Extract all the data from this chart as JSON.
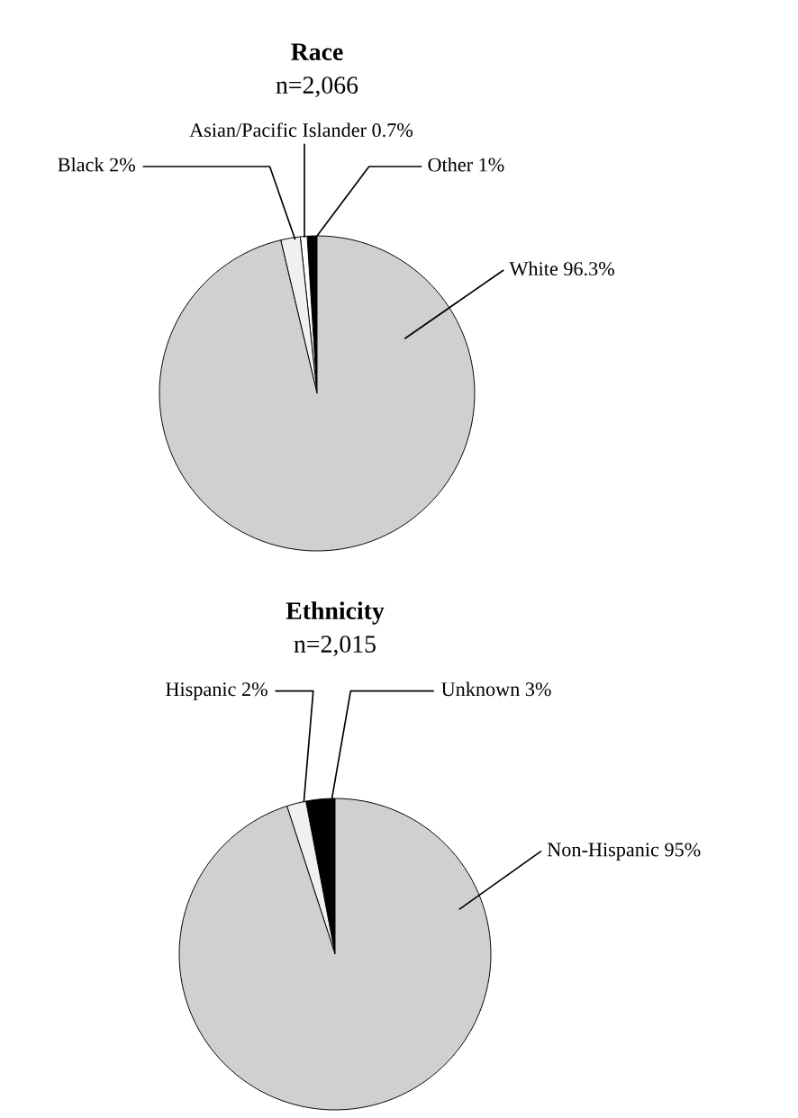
{
  "chart_data": [
    {
      "type": "pie",
      "title": "Race",
      "subtitle": "n=2,066",
      "categories": [
        "Other",
        "Asian/Pacific Islander",
        "Black",
        "White"
      ],
      "values": [
        1,
        0.7,
        2,
        96.3
      ],
      "colors": [
        "#000000",
        "#ffffff",
        "#f0f0f0",
        "#d0d0d0"
      ],
      "value_labels": [
        "1%",
        "0.7%",
        "2%",
        "96.3%"
      ]
    },
    {
      "type": "pie",
      "title": "Ethnicity",
      "subtitle": "n=2,015",
      "categories": [
        "Unknown",
        "Hispanic",
        "Non-Hispanic"
      ],
      "values": [
        3,
        2,
        95
      ],
      "colors": [
        "#000000",
        "#f0f0f0",
        "#d0d0d0"
      ],
      "value_labels": [
        "3%",
        "2%",
        "95%"
      ]
    }
  ]
}
